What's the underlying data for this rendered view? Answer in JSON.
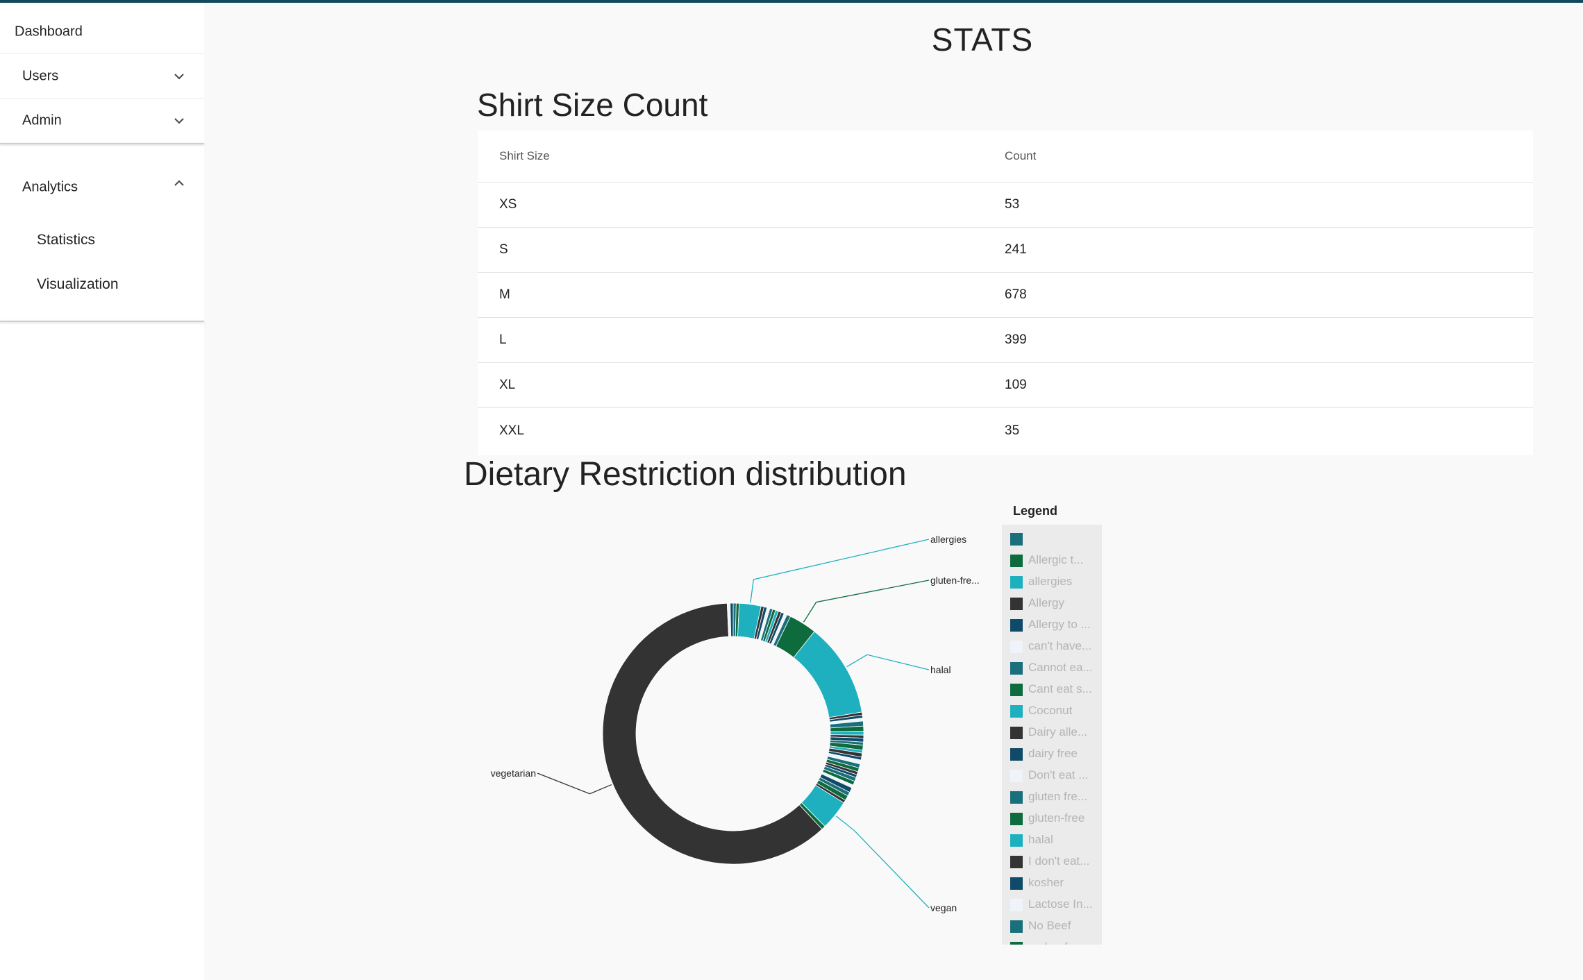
{
  "sidebar": {
    "dashboard": "Dashboard",
    "users": "Users",
    "admin": "Admin",
    "analytics": "Analytics",
    "analytics_items": [
      "Statistics",
      "Visualization"
    ]
  },
  "main": {
    "page_title": "STATS",
    "shirt_title": "Shirt Size Count",
    "table": {
      "headers": [
        "Shirt Size",
        "Count"
      ],
      "rows": [
        [
          "XS",
          "53"
        ],
        [
          "S",
          "241"
        ],
        [
          "M",
          "678"
        ],
        [
          "L",
          "399"
        ],
        [
          "XL",
          "109"
        ],
        [
          "XXL",
          "35"
        ]
      ]
    },
    "diet_title": "Dietary Restriction distribution"
  },
  "chart_data": {
    "type": "pie",
    "donut": true,
    "title": "Dietary Restriction distribution",
    "slices": [
      {
        "label": "",
        "value": 3,
        "color": "#1a6f7c"
      },
      {
        "label": "Allergic to ...",
        "value": 3,
        "color": "#0e6b3e"
      },
      {
        "label": "allergies",
        "value": 22,
        "color": "#1fb0c0"
      },
      {
        "label": "Allergy",
        "value": 3,
        "color": "#333333"
      },
      {
        "label": "Allergy to ...",
        "value": 3,
        "color": "#0f4a68"
      },
      {
        "label": "can't have...",
        "value": 3,
        "color": "#eef4fa"
      },
      {
        "label": "Cannot eat...",
        "value": 3,
        "color": "#1a6f7c"
      },
      {
        "label": "Cant eat s...",
        "value": 3,
        "color": "#0e6b3e"
      },
      {
        "label": "Coconut",
        "value": 3,
        "color": "#1fb0c0"
      },
      {
        "label": "Dairy alle...",
        "value": 3,
        "color": "#333333"
      },
      {
        "label": "dairy free",
        "value": 3,
        "color": "#0f4a68"
      },
      {
        "label": "Don't eat ...",
        "value": 3,
        "color": "#eef4fa"
      },
      {
        "label": "gluten fre...",
        "value": 4,
        "color": "#1a6f7c"
      },
      {
        "label": "gluten-free",
        "value": 28,
        "color": "#0e6b3e"
      },
      {
        "label": "halal",
        "value": 95,
        "color": "#1fb0c0"
      },
      {
        "label": "I don't eat...",
        "value": 3,
        "color": "#333333"
      },
      {
        "label": "kosher",
        "value": 3,
        "color": "#0f4a68"
      },
      {
        "label": "Lactose In...",
        "value": 3,
        "color": "#eef4fa"
      },
      {
        "label": "No Beef",
        "value": 5,
        "color": "#1a6f7c"
      },
      {
        "label": "no beef or...",
        "value": 5,
        "color": "#0e6b3e"
      },
      {
        "label": "",
        "value": 4,
        "color": "#1fb0c0"
      },
      {
        "label": "",
        "value": 3,
        "color": "#333333"
      },
      {
        "label": "",
        "value": 4,
        "color": "#0f4a68"
      },
      {
        "label": "",
        "value": 3,
        "color": "#1a6f7c"
      },
      {
        "label": "",
        "value": 5,
        "color": "#0e6b3e"
      },
      {
        "label": "",
        "value": 3,
        "color": "#1fb0c0"
      },
      {
        "label": "",
        "value": 4,
        "color": "#333333"
      },
      {
        "label": "",
        "value": 3,
        "color": "#0f4a68"
      },
      {
        "label": "",
        "value": 4,
        "color": "#eef4fa"
      },
      {
        "label": "",
        "value": 4,
        "color": "#1a6f7c"
      },
      {
        "label": "",
        "value": 4,
        "color": "#0e6b3e"
      },
      {
        "label": "",
        "value": 3,
        "color": "#333333"
      },
      {
        "label": "",
        "value": 3,
        "color": "#0f4a68"
      },
      {
        "label": "",
        "value": 4,
        "color": "#1a6f7c"
      },
      {
        "label": "",
        "value": 4,
        "color": "#0e6b3e"
      },
      {
        "label": "",
        "value": 3,
        "color": "#eef4fa"
      },
      {
        "label": "",
        "value": 5,
        "color": "#0f4a68"
      },
      {
        "label": "",
        "value": 4,
        "color": "#1a6f7c"
      },
      {
        "label": "",
        "value": 5,
        "color": "#0e6b3e"
      },
      {
        "label": "",
        "value": 3,
        "color": "#333333"
      },
      {
        "label": "vegan",
        "value": 30,
        "color": "#1fb0c0"
      },
      {
        "label": "",
        "value": 4,
        "color": "#0e6b3e"
      },
      {
        "label": "vegetarian",
        "value": 498,
        "color": "#333333"
      },
      {
        "label": "",
        "value": 3,
        "color": "#eef4fa"
      },
      {
        "label": "",
        "value": 3,
        "color": "#0f4a68"
      }
    ],
    "callouts": [
      {
        "label": "allergies",
        "slice": 2,
        "side": "right",
        "row": 0
      },
      {
        "label": "gluten-fre...",
        "slice": 13,
        "side": "right",
        "row": 1
      },
      {
        "label": "halal",
        "slice": 14,
        "side": "right",
        "row": 2
      },
      {
        "label": "vegan",
        "slice": 40,
        "side": "right",
        "row": 3
      },
      {
        "label": "vegetarian",
        "slice": 42,
        "side": "left",
        "row": 0
      }
    ],
    "legend": {
      "title": "Legend",
      "items": [
        {
          "label": "",
          "color": "#1a6f7c"
        },
        {
          "label": "Allergic t...",
          "color": "#0e6b3e"
        },
        {
          "label": "allergies",
          "color": "#1fb0c0"
        },
        {
          "label": "Allergy",
          "color": "#333333"
        },
        {
          "label": "Allergy to ...",
          "color": "#0f4a68"
        },
        {
          "label": "can't have...",
          "color": "#eef4fa"
        },
        {
          "label": "Cannot ea...",
          "color": "#1a6f7c"
        },
        {
          "label": "Cant eat s...",
          "color": "#0e6b3e"
        },
        {
          "label": "Coconut",
          "color": "#1fb0c0"
        },
        {
          "label": "Dairy alle...",
          "color": "#333333"
        },
        {
          "label": "dairy free",
          "color": "#0f4a68"
        },
        {
          "label": "Don't eat ...",
          "color": "#eef4fa"
        },
        {
          "label": "gluten fre...",
          "color": "#1a6f7c"
        },
        {
          "label": "gluten-free",
          "color": "#0e6b3e"
        },
        {
          "label": "halal",
          "color": "#1fb0c0"
        },
        {
          "label": "I don't eat...",
          "color": "#333333"
        },
        {
          "label": "kosher",
          "color": "#0f4a68"
        },
        {
          "label": "Lactose In...",
          "color": "#eef4fa"
        },
        {
          "label": "No Beef",
          "color": "#1a6f7c"
        },
        {
          "label": "no beef or...",
          "color": "#0e6b3e"
        }
      ]
    }
  }
}
